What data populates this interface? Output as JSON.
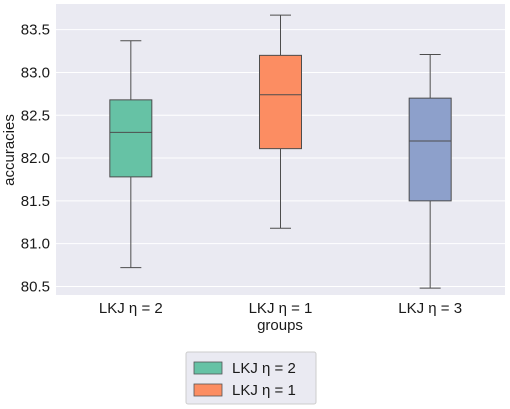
{
  "chart_data": {
    "type": "box",
    "xlabel": "groups",
    "ylabel": "accuracies",
    "ylim": [
      80.4,
      83.8
    ],
    "yticks": [
      80.5,
      81.0,
      81.5,
      82.0,
      82.5,
      83.0,
      83.5
    ],
    "ytick_labels": [
      "80.5",
      "81.0",
      "81.5",
      "82.0",
      "82.5",
      "83.0",
      "83.5"
    ],
    "grid": true,
    "categories": [
      "LKJ η = 2",
      "LKJ η = 1",
      "LKJ η = 3"
    ],
    "boxes": [
      {
        "category": "LKJ η = 2",
        "whisker_low": 80.72,
        "q1": 81.78,
        "median": 82.3,
        "q3": 82.68,
        "whisker_high": 83.37,
        "color": "#66c2a5"
      },
      {
        "category": "LKJ η = 1",
        "whisker_low": 81.18,
        "q1": 82.11,
        "median": 82.74,
        "q3": 83.2,
        "whisker_high": 83.67,
        "color": "#fc8d62"
      },
      {
        "category": "LKJ η = 3",
        "whisker_low": 80.48,
        "q1": 81.5,
        "median": 82.2,
        "q3": 82.7,
        "whisker_high": 83.21,
        "color": "#8da0cb"
      }
    ],
    "legend": {
      "placement": "below",
      "entries": [
        {
          "label": "LKJ η = 2",
          "color": "#66c2a5"
        },
        {
          "label": "LKJ η = 1",
          "color": "#fc8d62"
        }
      ]
    },
    "colors": {
      "background": "#eaeaf2",
      "grid": "#ffffff",
      "whisker": "#4d4d4d"
    }
  }
}
